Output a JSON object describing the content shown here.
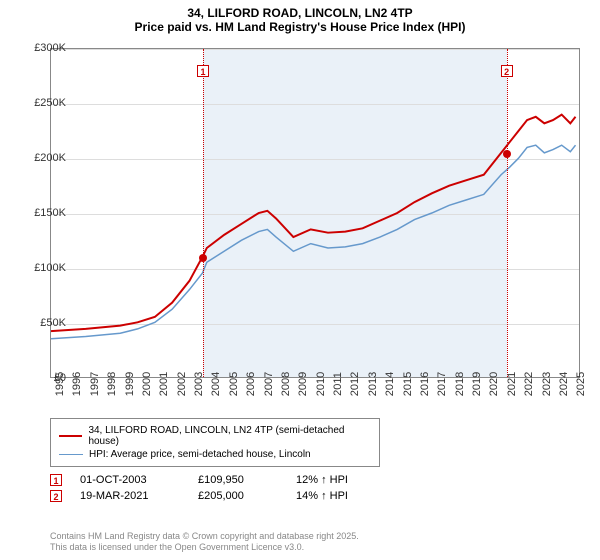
{
  "title_line1": "34, LILFORD ROAD, LINCOLN, LN2 4TP",
  "title_line2": "Price paid vs. HM Land Registry's House Price Index (HPI)",
  "chart": {
    "type": "line",
    "background_color": "#ffffff",
    "shaded_color": "#eaf1f8",
    "grid_color": "#dddddd",
    "border_color": "#888888",
    "ylim": [
      0,
      300000
    ],
    "ytick_step": 50000,
    "yticks": [
      "£0",
      "£50K",
      "£100K",
      "£150K",
      "£200K",
      "£250K",
      "£300K"
    ],
    "xlim": [
      1995,
      2025.5
    ],
    "xticks": [
      1995,
      1996,
      1997,
      1998,
      1999,
      2000,
      2001,
      2002,
      2003,
      2004,
      2005,
      2006,
      2007,
      2008,
      2009,
      2010,
      2011,
      2012,
      2013,
      2014,
      2015,
      2016,
      2017,
      2018,
      2019,
      2020,
      2021,
      2022,
      2023,
      2024,
      2025
    ],
    "shaded_range": [
      2003.75,
      2021.22
    ],
    "series": [
      {
        "name": "property",
        "color": "#cc0000",
        "width": 2,
        "points": [
          [
            1995,
            42000
          ],
          [
            1996,
            43000
          ],
          [
            1997,
            44000
          ],
          [
            1998,
            45500
          ],
          [
            1999,
            47000
          ],
          [
            2000,
            50000
          ],
          [
            2001,
            55000
          ],
          [
            2002,
            68000
          ],
          [
            2003,
            88000
          ],
          [
            2003.75,
            109950
          ],
          [
            2004,
            118000
          ],
          [
            2005,
            130000
          ],
          [
            2006,
            140000
          ],
          [
            2007,
            150000
          ],
          [
            2007.5,
            152000
          ],
          [
            2008,
            145000
          ],
          [
            2009,
            128000
          ],
          [
            2010,
            135000
          ],
          [
            2011,
            132000
          ],
          [
            2012,
            133000
          ],
          [
            2013,
            136000
          ],
          [
            2014,
            143000
          ],
          [
            2015,
            150000
          ],
          [
            2016,
            160000
          ],
          [
            2017,
            168000
          ],
          [
            2018,
            175000
          ],
          [
            2019,
            180000
          ],
          [
            2020,
            185000
          ],
          [
            2021,
            205000
          ],
          [
            2021.5,
            215000
          ],
          [
            2022,
            225000
          ],
          [
            2022.5,
            235000
          ],
          [
            2023,
            238000
          ],
          [
            2023.5,
            232000
          ],
          [
            2024,
            235000
          ],
          [
            2024.5,
            240000
          ],
          [
            2025,
            232000
          ],
          [
            2025.3,
            238000
          ]
        ]
      },
      {
        "name": "hpi",
        "color": "#6699cc",
        "width": 1.5,
        "points": [
          [
            1995,
            35000
          ],
          [
            1996,
            36000
          ],
          [
            1997,
            37000
          ],
          [
            1998,
            38500
          ],
          [
            1999,
            40000
          ],
          [
            2000,
            44000
          ],
          [
            2001,
            50000
          ],
          [
            2002,
            62000
          ],
          [
            2003,
            80000
          ],
          [
            2003.75,
            95000
          ],
          [
            2004,
            105000
          ],
          [
            2005,
            115000
          ],
          [
            2006,
            125000
          ],
          [
            2007,
            133000
          ],
          [
            2007.5,
            135000
          ],
          [
            2008,
            128000
          ],
          [
            2009,
            115000
          ],
          [
            2010,
            122000
          ],
          [
            2011,
            118000
          ],
          [
            2012,
            119000
          ],
          [
            2013,
            122000
          ],
          [
            2014,
            128000
          ],
          [
            2015,
            135000
          ],
          [
            2016,
            144000
          ],
          [
            2017,
            150000
          ],
          [
            2018,
            157000
          ],
          [
            2019,
            162000
          ],
          [
            2020,
            167000
          ],
          [
            2021,
            185000
          ],
          [
            2021.5,
            192000
          ],
          [
            2022,
            200000
          ],
          [
            2022.5,
            210000
          ],
          [
            2023,
            212000
          ],
          [
            2023.5,
            205000
          ],
          [
            2024,
            208000
          ],
          [
            2024.5,
            212000
          ],
          [
            2025,
            206000
          ],
          [
            2025.3,
            212000
          ]
        ]
      }
    ],
    "markers": [
      {
        "id": "1",
        "x": 2003.75,
        "y": 109950
      },
      {
        "id": "2",
        "x": 2021.22,
        "y": 205000
      }
    ],
    "marker_box_color": "#cc0000"
  },
  "legend": {
    "items": [
      {
        "color": "#cc0000",
        "width": 2,
        "label": "34, LILFORD ROAD, LINCOLN, LN2 4TP (semi-detached house)"
      },
      {
        "color": "#6699cc",
        "width": 1.5,
        "label": "HPI: Average price, semi-detached house, Lincoln"
      }
    ]
  },
  "transactions": [
    {
      "id": "1",
      "date": "01-OCT-2003",
      "price": "£109,950",
      "pct": "12%",
      "arrow": "↑",
      "suffix": "HPI"
    },
    {
      "id": "2",
      "date": "19-MAR-2021",
      "price": "£205,000",
      "pct": "14%",
      "arrow": "↑",
      "suffix": "HPI"
    }
  ],
  "footer_line1": "Contains HM Land Registry data © Crown copyright and database right 2025.",
  "footer_line2": "This data is licensed under the Open Government Licence v3.0."
}
